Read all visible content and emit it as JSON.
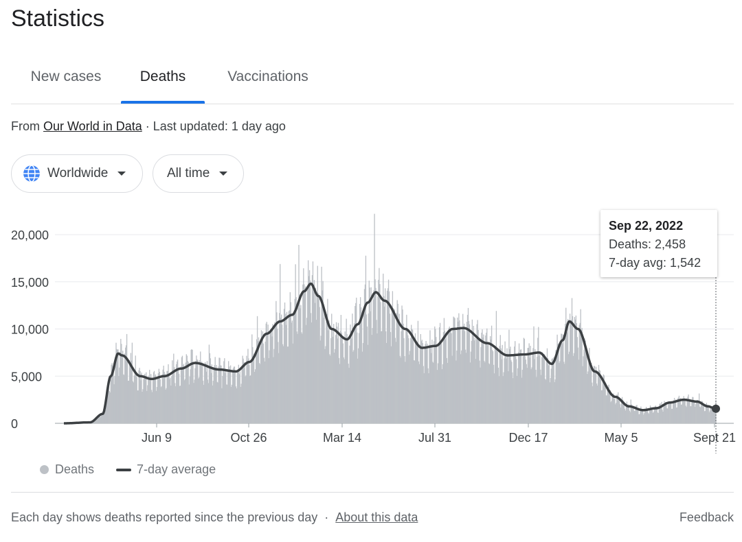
{
  "header": {
    "title": "Statistics"
  },
  "tabs": [
    {
      "label": "New cases",
      "active": false
    },
    {
      "label": "Deaths",
      "active": true
    },
    {
      "label": "Vaccinations",
      "active": false
    }
  ],
  "source": {
    "prefix": "From",
    "link": "Our World in Data",
    "separator": "·",
    "updated": "Last updated: 1 day ago"
  },
  "filters": {
    "region": {
      "label": "Worldwide",
      "icon": "globe-icon"
    },
    "range": {
      "label": "All time"
    }
  },
  "tooltip": {
    "date": "Sep 22, 2022",
    "deaths": "Deaths: 2,458",
    "avg": "7-day avg: 1,542"
  },
  "legend": {
    "bars": "Deaths",
    "line": "7-day average"
  },
  "footer": {
    "note": "Each day shows deaths reported since the previous day",
    "separator": "·",
    "about": "About this data",
    "feedback": "Feedback"
  },
  "colors": {
    "accent": "#1a73e8",
    "bars": "#bdc1c6",
    "line": "#3c4043"
  },
  "chart_data": {
    "type": "bar",
    "ylim": [
      0,
      20000
    ],
    "y_ticks": [
      "0",
      "5,000",
      "10,000",
      "15,000",
      "20,000"
    ],
    "x_ticks": [
      "Jun 9",
      "Oct 26",
      "Mar 14",
      "Jul 31",
      "Dec 17",
      "May 5",
      "Sept 21"
    ],
    "start_date": "2020-01-22",
    "end_date": "2022-09-22",
    "series": [
      {
        "name": "Deaths",
        "type": "bar"
      },
      {
        "name": "7-day average",
        "type": "line"
      }
    ],
    "avg_keypoints": [
      [
        "2020-01-22",
        0
      ],
      [
        "2020-03-01",
        100
      ],
      [
        "2020-03-20",
        1000
      ],
      [
        "2020-04-01",
        5000
      ],
      [
        "2020-04-12",
        7400
      ],
      [
        "2020-04-18",
        7200
      ],
      [
        "2020-05-15",
        5000
      ],
      [
        "2020-06-01",
        4700
      ],
      [
        "2020-06-20",
        5000
      ],
      [
        "2020-07-15",
        5800
      ],
      [
        "2020-08-05",
        6400
      ],
      [
        "2020-09-10",
        5700
      ],
      [
        "2020-10-05",
        5500
      ],
      [
        "2020-10-25",
        6500
      ],
      [
        "2020-11-20",
        9500
      ],
      [
        "2020-12-10",
        10800
      ],
      [
        "2020-12-28",
        11500
      ],
      [
        "2021-01-15",
        14000
      ],
      [
        "2021-01-25",
        14800
      ],
      [
        "2021-02-05",
        13500
      ],
      [
        "2021-02-25",
        10000
      ],
      [
        "2021-03-20",
        8900
      ],
      [
        "2021-04-05",
        10500
      ],
      [
        "2021-04-20",
        12800
      ],
      [
        "2021-05-02",
        13900
      ],
      [
        "2021-05-15",
        13000
      ],
      [
        "2021-06-15",
        10000
      ],
      [
        "2021-07-10",
        8000
      ],
      [
        "2021-07-30",
        8200
      ],
      [
        "2021-08-25",
        10000
      ],
      [
        "2021-09-10",
        10100
      ],
      [
        "2021-10-15",
        8500
      ],
      [
        "2021-11-15",
        7200
      ],
      [
        "2021-12-10",
        7300
      ],
      [
        "2022-01-01",
        7500
      ],
      [
        "2022-01-20",
        6300
      ],
      [
        "2022-02-05",
        8800
      ],
      [
        "2022-02-15",
        10800
      ],
      [
        "2022-02-28",
        10000
      ],
      [
        "2022-03-25",
        5500
      ],
      [
        "2022-04-25",
        2800
      ],
      [
        "2022-05-15",
        1800
      ],
      [
        "2022-06-05",
        1400
      ],
      [
        "2022-06-25",
        1600
      ],
      [
        "2022-07-15",
        2200
      ],
      [
        "2022-08-05",
        2500
      ],
      [
        "2022-08-25",
        2300
      ],
      [
        "2022-09-10",
        1800
      ],
      [
        "2022-09-22",
        1542
      ]
    ],
    "highlighted_point": {
      "date": "2022-09-22",
      "deaths": 2458,
      "avg": 1542
    }
  }
}
